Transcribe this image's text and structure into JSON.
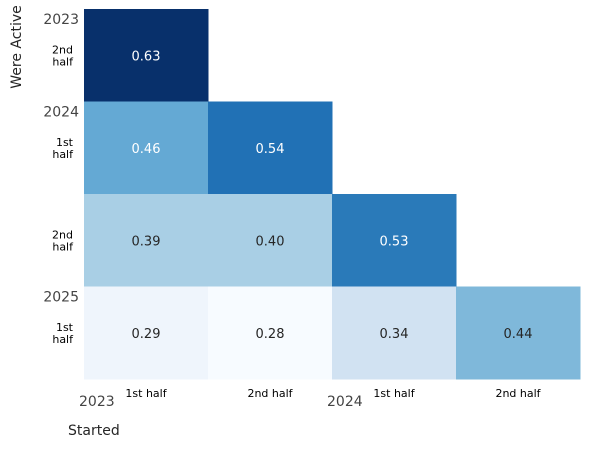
{
  "chart_data": {
    "type": "heatmap",
    "xlabel": "Started",
    "ylabel": "Were Active",
    "x_major_labels": [
      "2023",
      "2024"
    ],
    "x_minor_labels": [
      "1st half",
      "2nd half",
      "1st half",
      "2nd half"
    ],
    "y_major_labels": [
      "2023",
      "2024",
      "2025"
    ],
    "y_minor_labels": [
      "2nd half",
      "1st half",
      "2nd half",
      "1st half"
    ],
    "value_labels": [
      [
        "0.63",
        "",
        "",
        ""
      ],
      [
        "0.46",
        "0.54",
        "",
        ""
      ],
      [
        "0.39",
        "0.40",
        "0.53",
        ""
      ],
      [
        "0.29",
        "0.28",
        "0.34",
        "0.44"
      ]
    ],
    "values": [
      [
        0.63,
        null,
        null,
        null
      ],
      [
        0.46,
        0.54,
        null,
        null
      ],
      [
        0.39,
        0.4,
        0.53,
        null
      ],
      [
        0.29,
        0.28,
        0.34,
        0.44
      ]
    ],
    "colors": [
      [
        "#08306b",
        null,
        null,
        null
      ],
      [
        "#64a9d4",
        "#2171b5",
        null,
        null
      ],
      [
        "#a9cfe5",
        "#a9cfe5",
        "#2a7ab9",
        null
      ],
      [
        "#eff5fc",
        "#f7fbff",
        "#d1e2f2",
        "#7fb8da"
      ]
    ],
    "text_colors": [
      [
        "#ffffff",
        null,
        null,
        null
      ],
      [
        "#ffffff",
        "#ffffff",
        null,
        null
      ],
      [
        "#262626",
        "#262626",
        "#ffffff",
        null
      ],
      [
        "#262626",
        "#262626",
        "#262626",
        "#262626"
      ]
    ],
    "colormap": "Blues",
    "grid": false,
    "legend": "none"
  }
}
